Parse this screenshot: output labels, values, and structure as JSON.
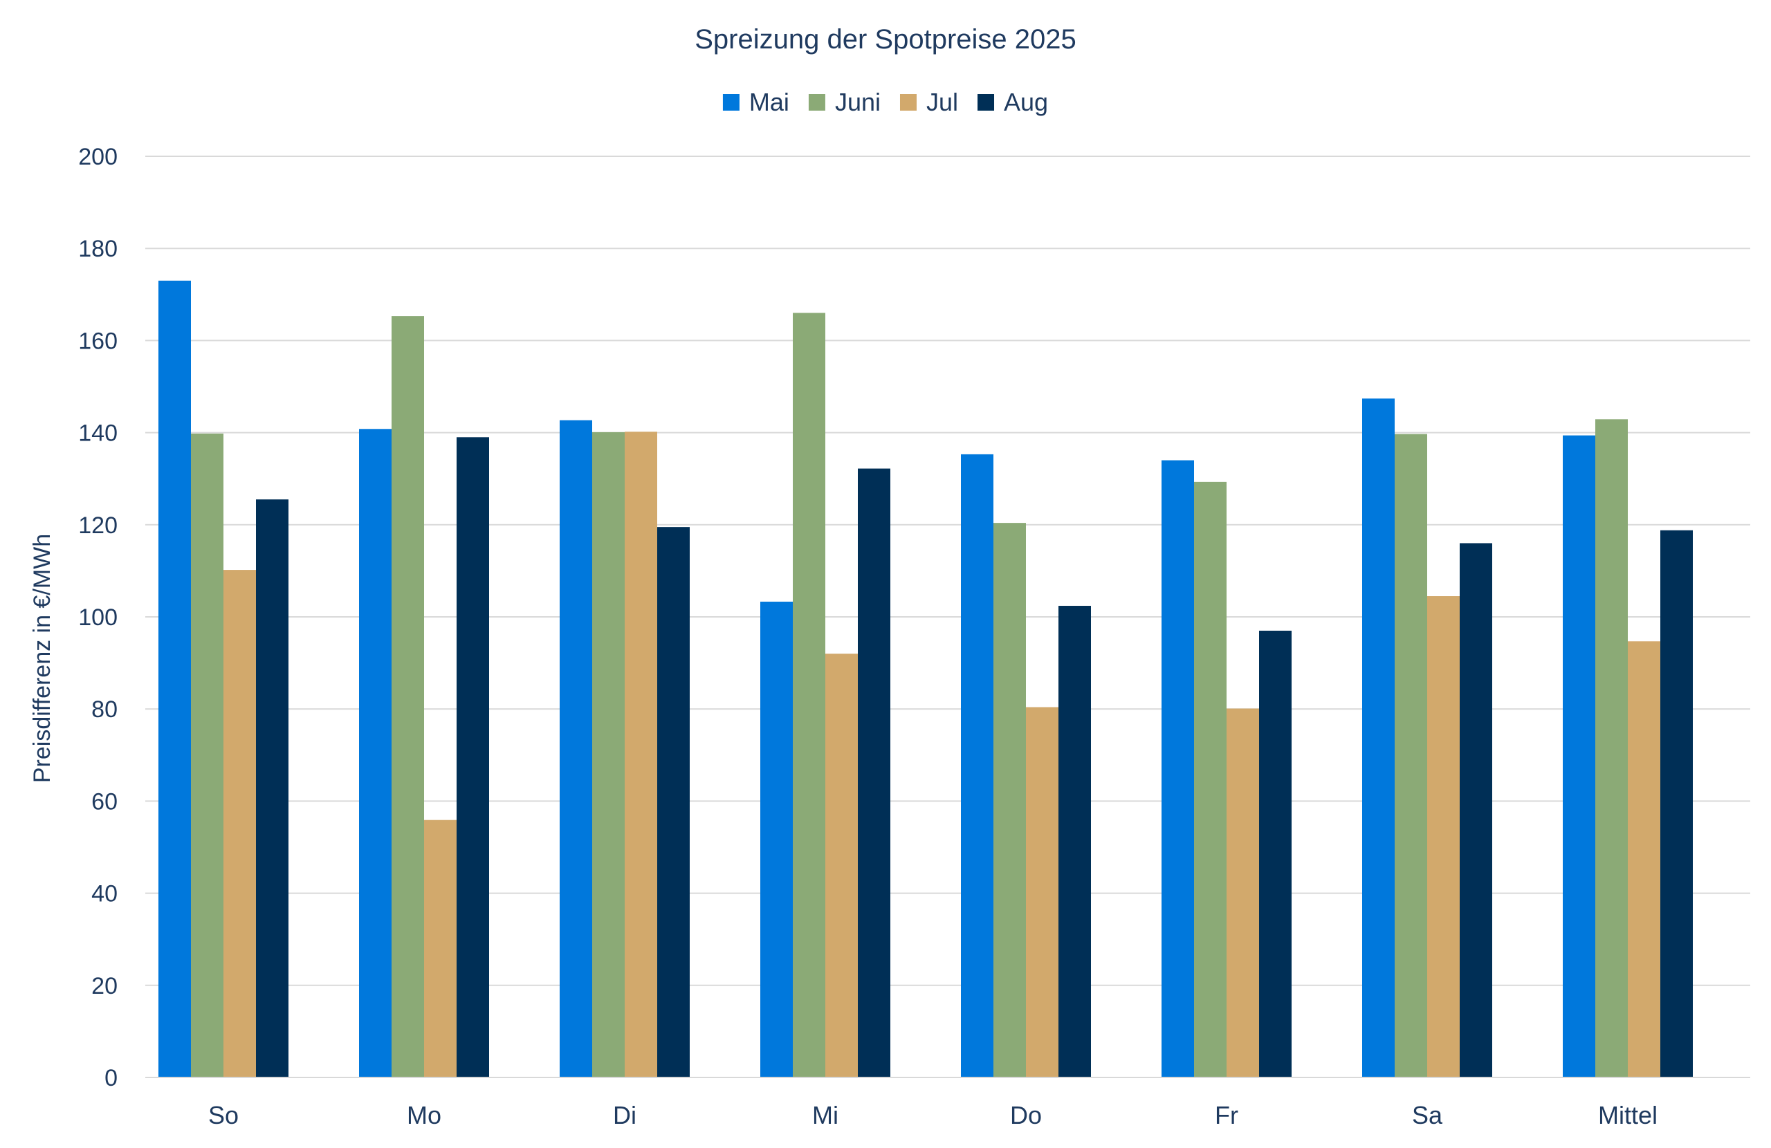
{
  "chart_data": {
    "type": "bar",
    "title": "Spreizung der Spotpreise 2025",
    "xlabel": "",
    "ylabel": "Preisdifferenz in €/MWh",
    "ylim": [
      0,
      200
    ],
    "yticks": [
      0,
      20,
      40,
      60,
      80,
      100,
      120,
      140,
      160,
      180,
      200
    ],
    "grid": true,
    "legend_position": "top-center",
    "categories": [
      "So",
      "Mo",
      "Di",
      "Mi",
      "Do",
      "Fr",
      "Sa",
      "Mittel"
    ],
    "series": [
      {
        "name": "Mai",
        "color": "#0078DC",
        "values": [
          173,
          140.8,
          142.7,
          103.3,
          135.3,
          134,
          147.4,
          139.4
        ]
      },
      {
        "name": "Juni",
        "color": "#8BAA76",
        "values": [
          139.8,
          165.3,
          140.1,
          166,
          120.4,
          129.3,
          139.7,
          142.9
        ]
      },
      {
        "name": "Jul",
        "color": "#D2A96C",
        "values": [
          110.2,
          55.9,
          140.2,
          92,
          80.4,
          80.1,
          104.5,
          94.7
        ]
      },
      {
        "name": "Aug",
        "color": "#002F56",
        "values": [
          125.5,
          139,
          119.5,
          132.2,
          102.4,
          97,
          116,
          118.8
        ]
      }
    ],
    "text_color": "#1F3A5F",
    "grid_color": "#D9D9D9"
  }
}
